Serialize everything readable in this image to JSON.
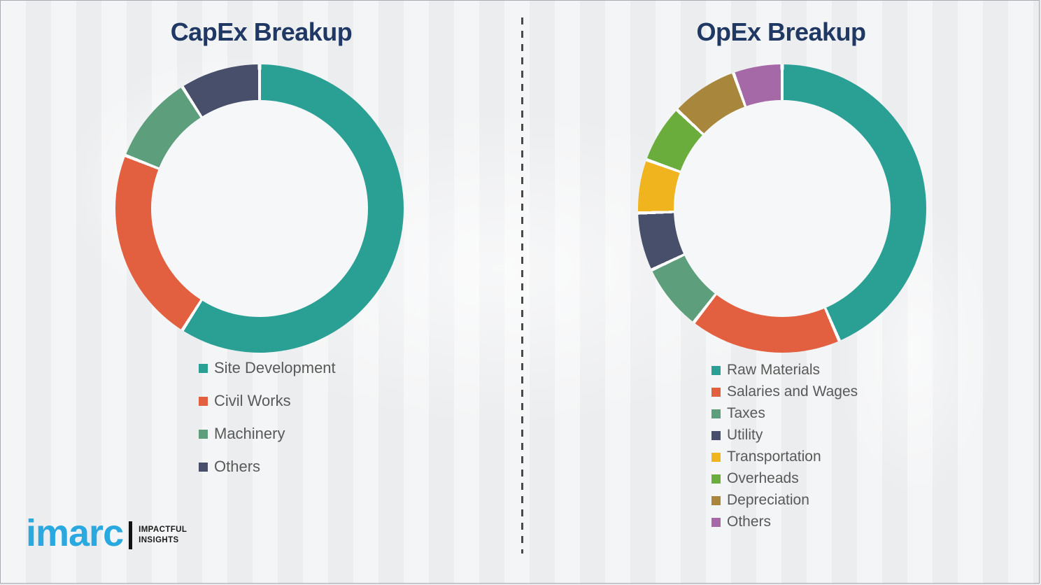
{
  "page": {
    "background_color": "#f0f1f3",
    "divider_color": "#4a4a4a",
    "title_color": "#1f3864",
    "legend_text_color": "#595959",
    "segment_gap_color": "#fdfdfd"
  },
  "chart_data": [
    {
      "id": "capex",
      "type": "pie",
      "variant": "donut",
      "title": "CapEx Breakup",
      "labels": [
        "Site Development",
        "Civil Works",
        "Machinery",
        "Others"
      ],
      "values": [
        59,
        22,
        10,
        9
      ],
      "colors": [
        "#2aa095",
        "#e2603f",
        "#5d9e7c",
        "#474f6b"
      ],
      "units": "percent-estimated",
      "start_angle_deg": 0,
      "direction": "clockwise",
      "legend_position": "below-left"
    },
    {
      "id": "opex",
      "type": "pie",
      "variant": "donut",
      "title": "OpEx Breakup",
      "labels": [
        "Raw Materials",
        "Salaries and Wages",
        "Taxes",
        "Utility",
        "Transportation",
        "Overheads",
        "Depreciation",
        "Others"
      ],
      "values": [
        43.5,
        17,
        7.5,
        6.5,
        6,
        6.5,
        7.5,
        5.5
      ],
      "colors": [
        "#2aa095",
        "#e2603f",
        "#5d9e7c",
        "#474f6b",
        "#f0b41f",
        "#6aad3d",
        "#a8873c",
        "#a569a8"
      ],
      "units": "percent-estimated",
      "start_angle_deg": 0,
      "direction": "clockwise",
      "legend_position": "below-left"
    }
  ],
  "logo": {
    "brand": "imarc",
    "tagline_line1": "IMPACTFUL",
    "tagline_line2": "INSIGHTS",
    "brand_color": "#2aa9e0"
  }
}
